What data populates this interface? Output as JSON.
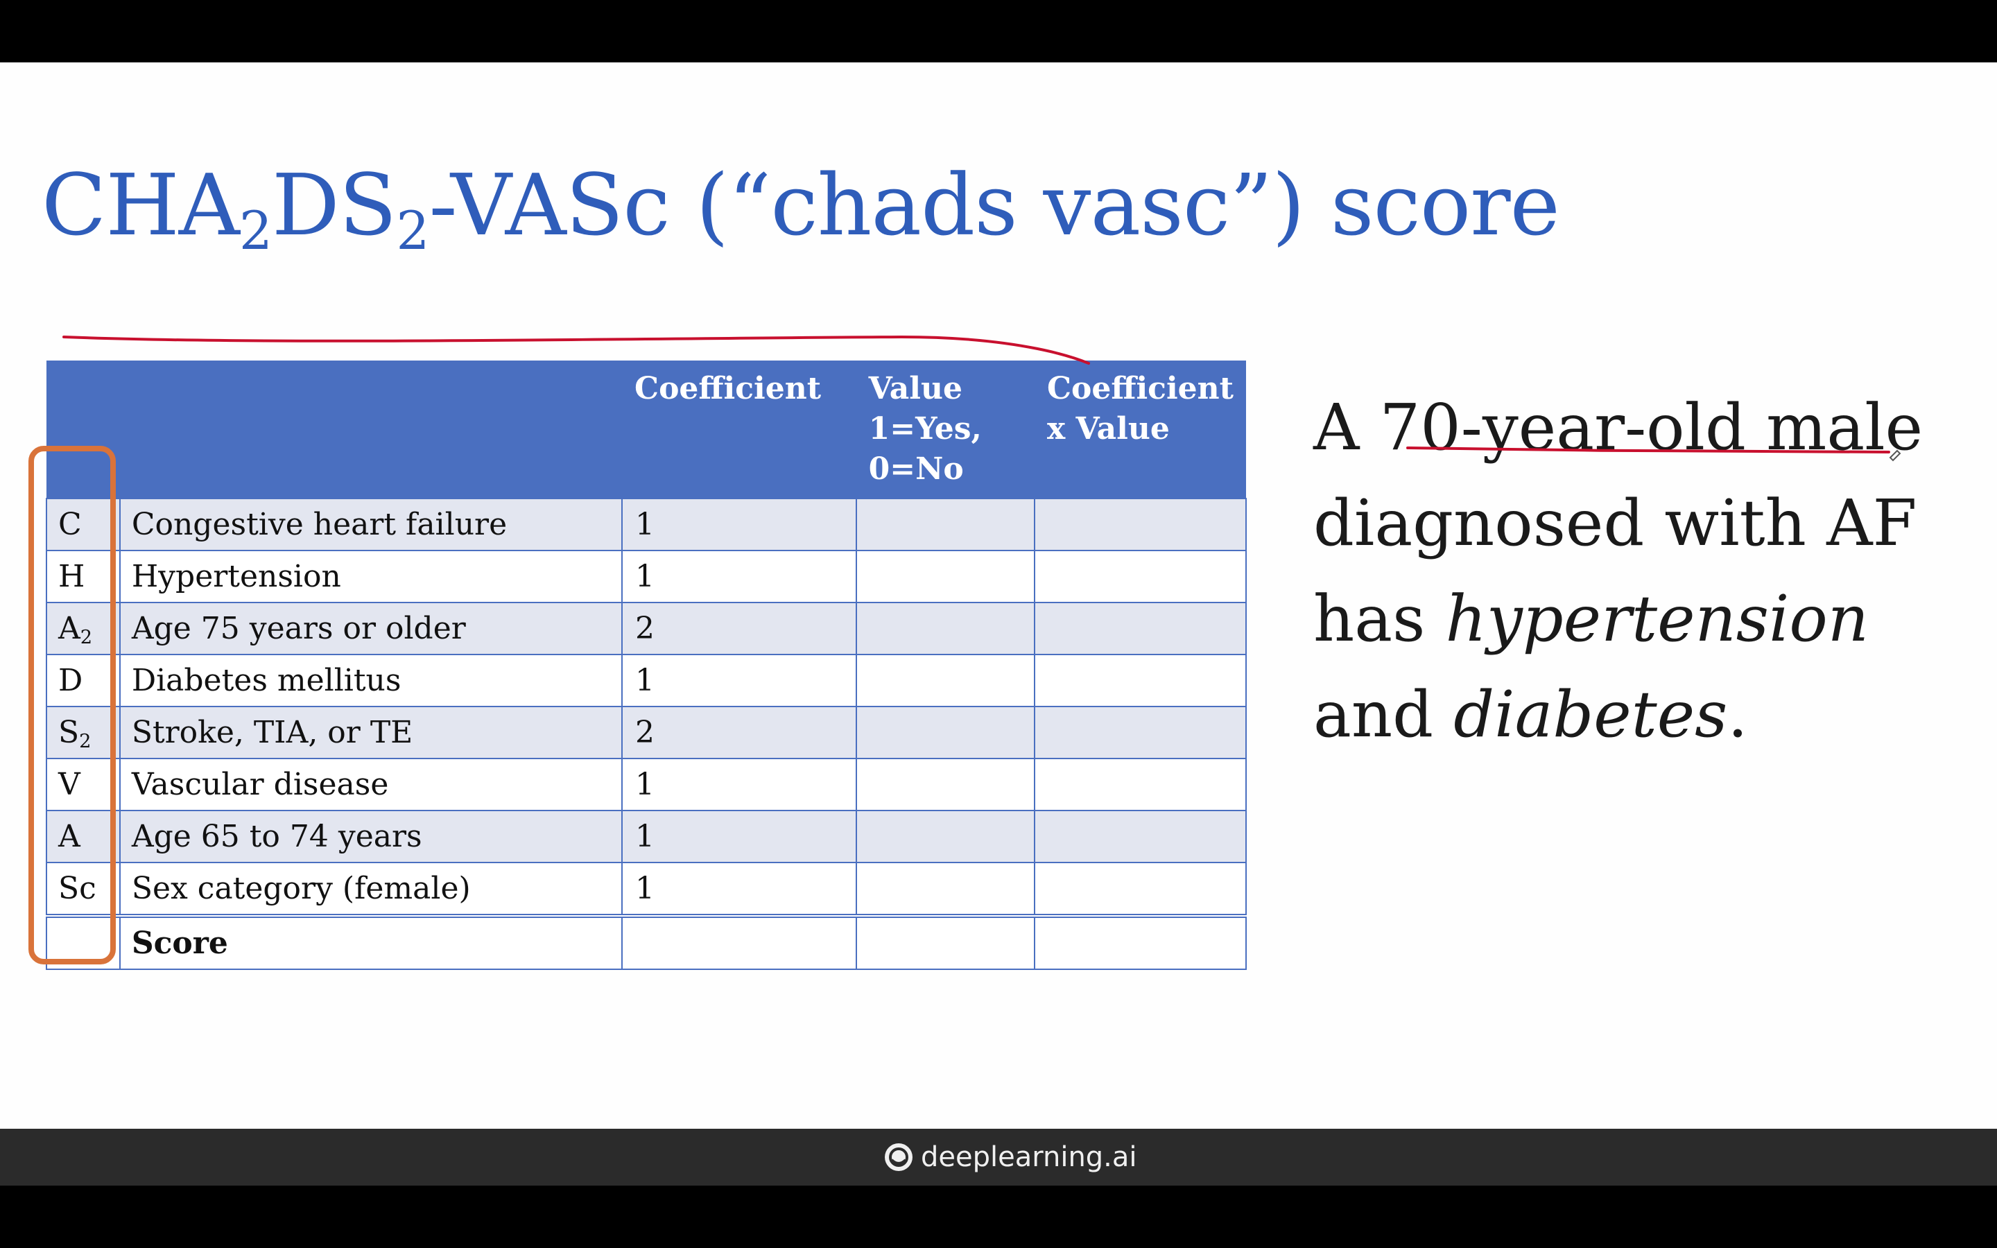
{
  "slide": {
    "title_parts": [
      "CHA",
      "2",
      "DS",
      "2",
      "-VASc (“chads vasc”) score"
    ],
    "table": {
      "headers": [
        "",
        "",
        "Coefficient",
        "Value\n1=Yes,\n0=No",
        "Coefficient\nx Value"
      ],
      "rows": [
        {
          "letter": "C",
          "sub": "",
          "description": "Congestive heart failure",
          "coefficient": "1",
          "value": "",
          "product": ""
        },
        {
          "letter": "H",
          "sub": "",
          "description": "Hypertension",
          "coefficient": "1",
          "value": "",
          "product": ""
        },
        {
          "letter": "A",
          "sub": "2",
          "description": "Age 75 years or older",
          "coefficient": "2",
          "value": "",
          "product": ""
        },
        {
          "letter": "D",
          "sub": "",
          "description": "Diabetes mellitus",
          "coefficient": "1",
          "value": "",
          "product": ""
        },
        {
          "letter": "S",
          "sub": "2",
          "description": "Stroke, TIA, or TE",
          "coefficient": "2",
          "value": "",
          "product": ""
        },
        {
          "letter": "V",
          "sub": "",
          "description": "Vascular disease",
          "coefficient": "1",
          "value": "",
          "product": ""
        },
        {
          "letter": "A",
          "sub": "",
          "description": "Age 65 to 74 years",
          "coefficient": "1",
          "value": "",
          "product": ""
        },
        {
          "letter": "Sc",
          "sub": "",
          "description": "Sex category (female)",
          "coefficient": "1",
          "value": "",
          "product": ""
        }
      ],
      "score_label": "Score"
    },
    "case_text": {
      "line1": "A 70-year-old male",
      "line2": "diagnosed with AF",
      "line3_prefix": "has ",
      "line3_italic": "hypertension",
      "line4_prefix": "and ",
      "line4_italic": "diabetes",
      "line4_suffix": "."
    }
  },
  "footer": {
    "brand": "deeplearning.ai",
    "logo_icon": "deeplearning-logo-icon"
  },
  "colors": {
    "title": "#2f5dba",
    "header_bg": "#4a6fc0",
    "row_band": "#e3e6f0",
    "pen_red": "#c8102e",
    "pen_orange": "#d9733a",
    "footer_bg": "#2b2b2b"
  }
}
